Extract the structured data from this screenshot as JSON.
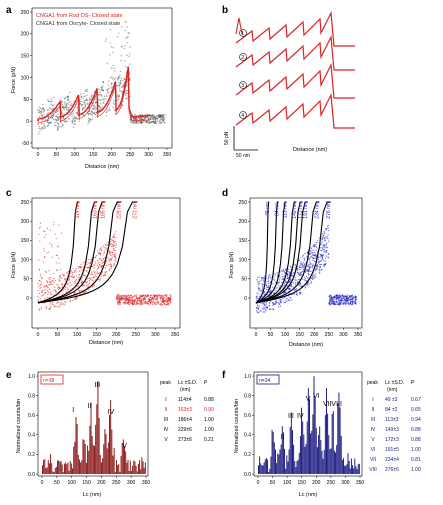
{
  "colors": {
    "red": "#dd2222",
    "gray": "#555555",
    "blue": "#2222cc",
    "darkred": "#8b1a1a",
    "navy": "#1a1a80"
  },
  "panels": {
    "a": {
      "label": "a",
      "legend": [
        "CNGA1 from Rod OS- Closed state",
        "CNGA1 from Oocyte- Closed state"
      ],
      "ylabel": "Force (pN)",
      "xlabel": "Distance (nm)",
      "yticks": [
        "250",
        "200",
        "150",
        "100",
        "50",
        "0",
        "-50"
      ],
      "xticks": [
        "0",
        "50",
        "100",
        "150",
        "200",
        "250",
        "300",
        "350"
      ]
    },
    "b": {
      "label": "b",
      "traces": [
        "1",
        "2",
        "3",
        "4"
      ],
      "scale_force": "50 pN",
      "scale_dist": "50 nm",
      "xlabel": "Distance (nm)"
    },
    "c": {
      "label": "c",
      "ylabel": "Force (pN)",
      "xlabel": "Distance (nm)",
      "yticks": [
        "250",
        "200",
        "150",
        "100",
        "50",
        "0"
      ],
      "xticks": [
        "0",
        "50",
        "100",
        "150",
        "200",
        "250",
        "300",
        "350"
      ],
      "lc_labels": [
        "114 nm",
        "163 nm",
        "185 nm",
        "229 nm",
        "273 nm"
      ]
    },
    "d": {
      "label": "d",
      "ylabel": "Force (pN)",
      "xlabel": "Distance (nm)",
      "yticks": [
        "250",
        "200",
        "150",
        "100",
        "50",
        "0"
      ],
      "xticks": [
        "0",
        "50",
        "100",
        "150",
        "200",
        "250",
        "300",
        "350"
      ],
      "lc_labels": [
        "49 nm",
        "84 nm",
        "113 nm",
        "149 nm",
        "172 nm",
        "191 nm",
        "234 nm",
        "276 nm"
      ]
    },
    "e": {
      "label": "e",
      "n": "n=38",
      "ylabel": "Normalized counts/bin",
      "xlabel": "Lc (nm)",
      "yticks": [
        "1.0",
        "0.8",
        "0.6",
        "0.4",
        "0.2",
        "0.0"
      ],
      "xticks": [
        "0",
        "50",
        "100",
        "150",
        "200",
        "250",
        "300",
        "350"
      ],
      "peaks": [
        "I",
        "II",
        "III",
        "IV",
        "V"
      ],
      "table": {
        "headers": [
          "peak",
          "Lc ±S.D.",
          "P"
        ],
        "unit": "(nm)",
        "rows": [
          {
            "peak": "I",
            "lc": "114±4",
            "p": "0.88"
          },
          {
            "peak": "II",
            "lc": "163±3",
            "p": "0.90"
          },
          {
            "peak": "III",
            "lc": "186±4",
            "p": "1.00"
          },
          {
            "peak": "IV",
            "lc": "229±6",
            "p": "1.00"
          },
          {
            "peak": "V",
            "lc": "273±6",
            "p": "0.21"
          }
        ]
      }
    },
    "f": {
      "label": "f",
      "n": "n=34",
      "ylabel": "Normalized counts/bin",
      "xlabel": "Lc (nm)",
      "yticks": [
        "1.0",
        "0.8",
        "0.6",
        "0.4",
        "0.2",
        "0.0"
      ],
      "xticks": [
        "0",
        "50",
        "100",
        "150",
        "200",
        "250",
        "300",
        "350"
      ],
      "peaks": [
        "I",
        "II",
        "III",
        "IV",
        "V",
        "VI",
        "VII",
        "VIII"
      ],
      "table": {
        "headers": [
          "peak",
          "Lc ±S.D.",
          "P"
        ],
        "unit": "(nm)",
        "rows": [
          {
            "peak": "I",
            "lc": "49 ±2",
            "p": "0.67"
          },
          {
            "peak": "II",
            "lc": "84 ±2",
            "p": "0.65"
          },
          {
            "peak": "III",
            "lc": "113±3",
            "p": "0.94"
          },
          {
            "peak": "IV",
            "lc": "149±3",
            "p": "0.88"
          },
          {
            "peak": "V",
            "lc": "172±3",
            "p": "0.88"
          },
          {
            "peak": "VI",
            "lc": "191±5",
            "p": "1.00"
          },
          {
            "peak": "VII",
            "lc": "234±4",
            "p": "0.81"
          },
          {
            "peak": "VIII",
            "lc": "276±6",
            "p": "1.00"
          }
        ]
      }
    }
  }
}
